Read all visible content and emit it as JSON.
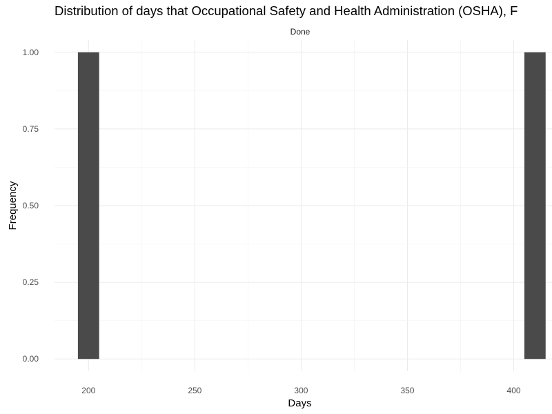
{
  "chart_data": {
    "type": "bar",
    "title": "Distribution of days that Occupational Safety and Health Administration (OSHA), F",
    "facet_label": "Done",
    "xlabel": "Days",
    "ylabel": "Frequency",
    "bin_width": 10,
    "bins": [
      {
        "x": 200,
        "count": 1
      },
      {
        "x": 410,
        "count": 1
      }
    ],
    "xlim": [
      184,
      418
    ],
    "ylim": [
      -0.04,
      1.04
    ],
    "x_ticks": [
      200,
      250,
      300,
      350,
      400
    ],
    "y_ticks": [
      0.0,
      0.25,
      0.5,
      0.75,
      1.0
    ],
    "y_tick_labels": [
      "0.00",
      "0.25",
      "0.50",
      "0.75",
      "1.00"
    ],
    "grid": true,
    "bar_color": "#4a4a4a",
    "grid_color": "#ebebeb"
  }
}
